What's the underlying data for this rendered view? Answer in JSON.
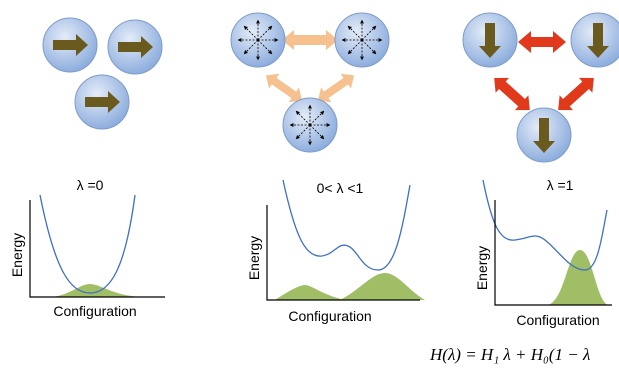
{
  "panels": [
    {
      "label": "λ =0",
      "y_axis": "Energy",
      "x_axis": "Configuration"
    },
    {
      "label": "0< λ <1",
      "y_axis": "Energy",
      "x_axis": "Configuration"
    },
    {
      "label": "λ =1",
      "y_axis": "Energy",
      "x_axis": "Configuration"
    }
  ],
  "equation": "H(λ) = H₁ λ + H₀(1 − λ"
}
